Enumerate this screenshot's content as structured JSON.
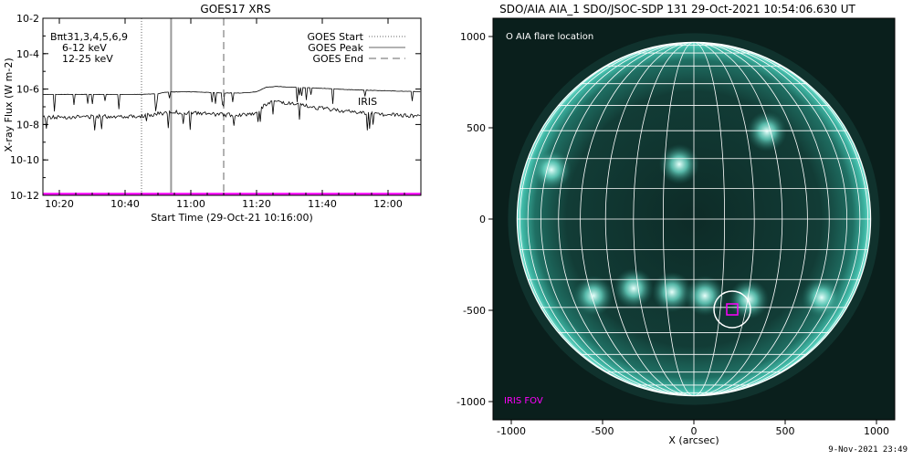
{
  "chart_data": [
    {
      "type": "line",
      "title": "GOES17 XRS",
      "xlabel": "Start Time (29-Oct-21 10:16:00)",
      "ylabel": "X-ray Flux (W m-2)",
      "ylog": true,
      "ylim": [
        1e-12,
        0.01
      ],
      "xlim": [
        "10:15",
        "12:10"
      ],
      "x_ticks": [
        "10:20",
        "10:40",
        "11:00",
        "11:20",
        "11:40",
        "12:00"
      ],
      "y_ticks": [
        "10-2",
        "10-4",
        "10-6",
        "10-8",
        "10-10",
        "10-12"
      ],
      "channel_label": "Bπt31,3,4,5,6,9",
      "series": [
        {
          "name": "6-12 keV",
          "color": "#ff00ff",
          "x": [
            "10:15",
            "12:10"
          ],
          "y": [
            1.2e-12,
            1.2e-12
          ]
        },
        {
          "name": "12-25 keV",
          "color": "#00dd00"
        }
      ],
      "upper_curve": {
        "color": "#000000",
        "x": [
          "10:15",
          "10:45",
          "10:50",
          "10:52",
          "10:54",
          "11:00",
          "11:05",
          "11:10",
          "11:15",
          "11:20",
          "11:23",
          "11:26",
          "11:30",
          "11:40",
          "11:50",
          "12:00",
          "12:10"
        ],
        "y": [
          5e-07,
          5e-07,
          5.5e-07,
          6.5e-07,
          7e-07,
          7e-07,
          6.5e-07,
          6e-07,
          6e-07,
          7e-07,
          1.3e-06,
          1.4e-06,
          1.3e-06,
          1.1e-06,
          9e-07,
          8e-07,
          7e-07
        ]
      },
      "lower_curve": {
        "color": "#000000",
        "x": [
          "10:15",
          "10:30",
          "10:45",
          "10:50",
          "10:54",
          "11:00",
          "11:05",
          "11:10",
          "11:15",
          "11:20",
          "11:23",
          "11:26",
          "11:30",
          "11:40",
          "11:50",
          "12:00",
          "12:10"
        ],
        "y": [
          2.5e-08,
          2.8e-08,
          3e-08,
          4e-08,
          5e-08,
          4.5e-08,
          4e-08,
          3.5e-08,
          3.5e-08,
          4.5e-08,
          1.5e-07,
          2e-07,
          1.5e-07,
          8e-08,
          5e-08,
          3.5e-08,
          3e-08
        ]
      },
      "vertical_markers": [
        {
          "name": "GOES Start",
          "x": "10:45",
          "style": "dotted",
          "color": "#999999"
        },
        {
          "name": "GOES Peak",
          "x": "10:54",
          "style": "solid",
          "color": "#999999"
        },
        {
          "name": "GOES End",
          "x": "11:10",
          "style": "dashed",
          "color": "#999999"
        }
      ],
      "annotations": [
        {
          "text": "IRIS",
          "x": "11:50",
          "y": 2e-07,
          "color": "#ff00ff"
        }
      ]
    },
    {
      "type": "scatter",
      "title": "SDO/AIA AIA_1 SDO/JSOC-SDP 131 29-Oct-2021 10:54:06.630 UT",
      "xlabel": "X (arcsec)",
      "ylabel": "",
      "xlim": [
        -1100,
        1100
      ],
      "ylim": [
        -1100,
        1100
      ],
      "x_ticks": [
        -1000,
        -500,
        0,
        500,
        1000
      ],
      "y_ticks": [
        1000,
        500,
        0,
        -500,
        -1000
      ],
      "solar_radius": 968,
      "grid_spacing_deg": 10,
      "flare_location": {
        "x": 210,
        "y": -495,
        "radius": 100,
        "label": "O AIA flare location"
      },
      "iris_fov": {
        "x": 210,
        "y": -495,
        "size": 60,
        "label": "IRIS FOV",
        "color": "#ff00ff"
      },
      "bright_regions": [
        {
          "x": -780,
          "y": 270
        },
        {
          "x": -330,
          "y": -380
        },
        {
          "x": -120,
          "y": -400
        },
        {
          "x": 60,
          "y": -420
        },
        {
          "x": 300,
          "y": -440
        },
        {
          "x": 700,
          "y": -430
        },
        {
          "x": -550,
          "y": -420
        },
        {
          "x": 400,
          "y": 480
        },
        {
          "x": -80,
          "y": 300
        }
      ]
    }
  ],
  "footer": {
    "stamp": "9-Nov-2021 23:49"
  }
}
